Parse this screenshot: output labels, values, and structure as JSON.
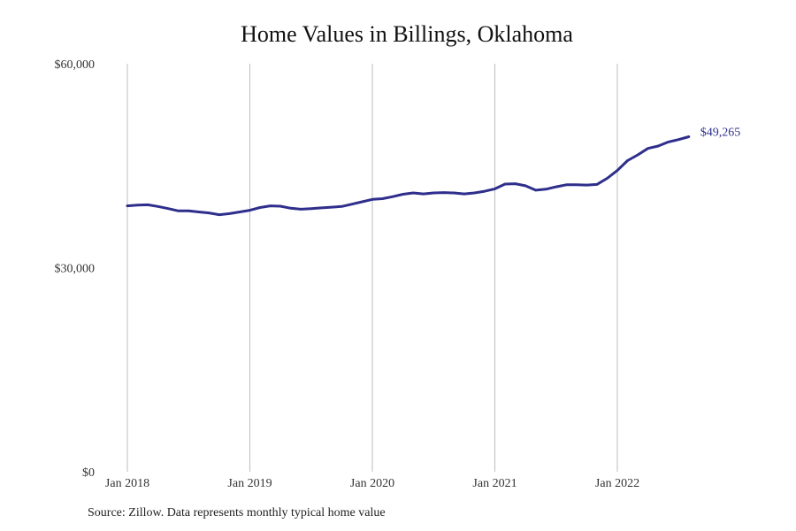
{
  "title": "Home Values in Billings, Oklahoma",
  "source": "Source: Zillow. Data represents monthly typical home value",
  "colors": {
    "line": "#2e2e8c",
    "grid": "#bdbdbd"
  },
  "chart_data": {
    "type": "line",
    "title": "Home Values in Billings, Oklahoma",
    "xlabel": "",
    "ylabel": "",
    "grid": "vertical",
    "ylim": [
      0,
      60000
    ],
    "y_ticks": [
      {
        "value": 0,
        "label": "$0"
      },
      {
        "value": 30000,
        "label": "$30,000"
      },
      {
        "value": 60000,
        "label": "$60,000"
      }
    ],
    "x_ticks": [
      {
        "value": "2018-01",
        "label": "Jan 2018"
      },
      {
        "value": "2019-01",
        "label": "Jan 2019"
      },
      {
        "value": "2020-01",
        "label": "Jan 2020"
      },
      {
        "value": "2021-01",
        "label": "Jan 2021"
      },
      {
        "value": "2022-01",
        "label": "Jan 2022"
      }
    ],
    "end_label": "$49,265",
    "series": [
      {
        "x": [
          "2018-01",
          "2018-02",
          "2018-03",
          "2018-04",
          "2018-05",
          "2018-06",
          "2018-07",
          "2018-08",
          "2018-09",
          "2018-10",
          "2018-11",
          "2018-12",
          "2019-01",
          "2019-02",
          "2019-03",
          "2019-04",
          "2019-05",
          "2019-06",
          "2019-07",
          "2019-08",
          "2019-09",
          "2019-10",
          "2019-11",
          "2019-12",
          "2020-01",
          "2020-02",
          "2020-03",
          "2020-04",
          "2020-05",
          "2020-06",
          "2020-07",
          "2020-08",
          "2020-09",
          "2020-10",
          "2020-11",
          "2020-12",
          "2021-01",
          "2021-02",
          "2021-03",
          "2021-04",
          "2021-05",
          "2021-06",
          "2021-07",
          "2021-08",
          "2021-09",
          "2021-10",
          "2021-11",
          "2021-12",
          "2022-01",
          "2022-02",
          "2022-03",
          "2022-04",
          "2022-05",
          "2022-06",
          "2022-07",
          "2022-08"
        ],
        "values": [
          39100,
          39200,
          39250,
          39000,
          38700,
          38350,
          38350,
          38200,
          38050,
          37800,
          37950,
          38200,
          38450,
          38850,
          39100,
          39050,
          38750,
          38600,
          38700,
          38800,
          38900,
          39000,
          39350,
          39700,
          40050,
          40150,
          40450,
          40800,
          41000,
          40850,
          41000,
          41050,
          41000,
          40850,
          41000,
          41250,
          41600,
          42300,
          42350,
          42050,
          41400,
          41550,
          41900,
          42200,
          42200,
          42150,
          42250,
          43150,
          44300,
          45750,
          46600,
          47550,
          47900,
          48500,
          48850,
          49265
        ]
      }
    ]
  }
}
